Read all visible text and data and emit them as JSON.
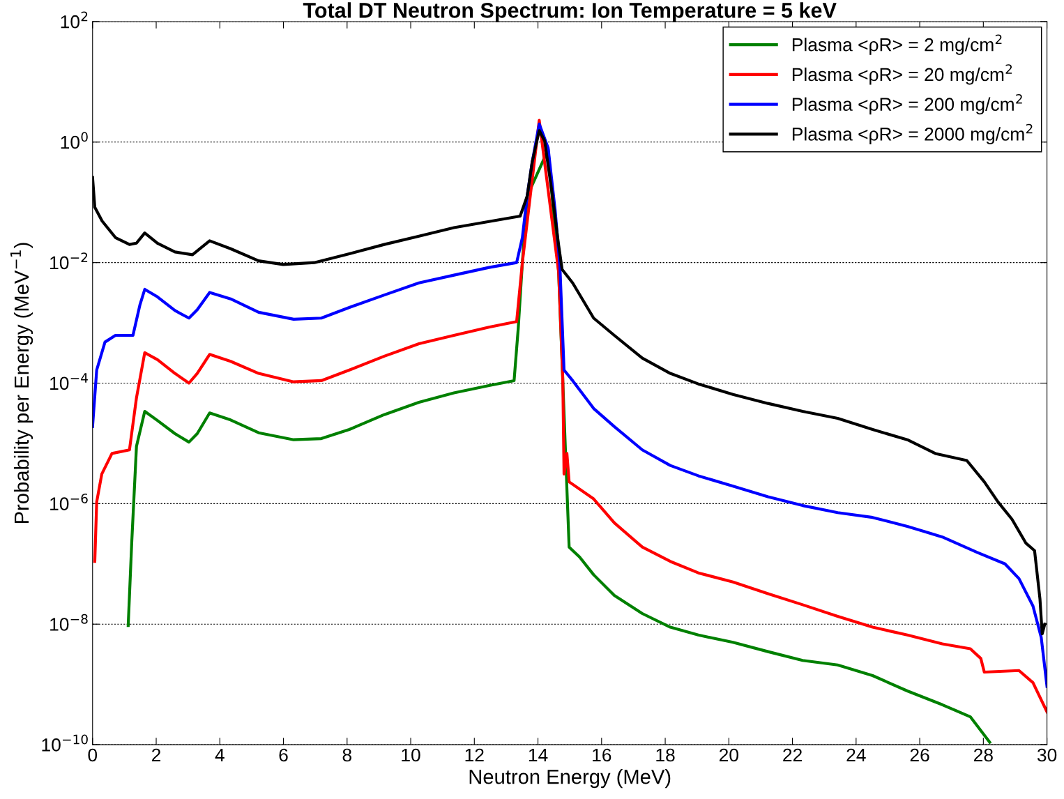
{
  "chart_data": {
    "type": "line",
    "title": "Total DT Neutron Spectrum: Ion Temperature = 5 keV",
    "xlabel": "Neutron Energy (MeV)",
    "ylabel": "Probability per Energy (MeV$^{−1}$)",
    "log": "y",
    "grid": "y",
    "legend": "top right",
    "marker": "none",
    "line_style": "solid",
    "xlim": [
      0,
      30
    ],
    "xticks": [
      0,
      2,
      4,
      6,
      8,
      10,
      12,
      14,
      16,
      18,
      20,
      22,
      24,
      26,
      28,
      30
    ],
    "ylim": [
      1e-10,
      100
    ],
    "yticks": [
      {
        "value": 1e-10,
        "label": "10$^{−10}$"
      },
      {
        "value": 1e-08,
        "label": "10$^{−8}$"
      },
      {
        "value": 1e-06,
        "label": "10$^{−6}$"
      },
      {
        "value": 0.0001,
        "label": "10$^{−4}$"
      },
      {
        "value": 0.01,
        "label": "10$^{−2}$"
      },
      {
        "value": 1,
        "label": "10$^{0}$"
      },
      {
        "value": 100,
        "label": "10$^{2}$"
      }
    ],
    "series": [
      {
        "name": "Plasma <ρR> = 2 mg/cm$^{2}$",
        "color": "#008000",
        "x": [
          1.12,
          1.23,
          1.38,
          1.64,
          2.04,
          2.59,
          3.03,
          3.29,
          3.68,
          4.34,
          5.22,
          6.32,
          7.19,
          8.07,
          9.17,
          10.26,
          11.36,
          12.46,
          13.25,
          13.38,
          13.51,
          13.66,
          14.32,
          14.65,
          14.98,
          15.31,
          15.75,
          16.4,
          17.28,
          18.16,
          19.04,
          20.13,
          21.23,
          22.32,
          23.42,
          24.52,
          25.61,
          26.71,
          27.59,
          28.2
        ],
        "values": [
          9.5e-09,
          2.2e-07,
          8.9e-06,
          3.4e-05,
          2.4e-05,
          1.45e-05,
          1.05e-05,
          1.45e-05,
          3.2e-05,
          2.45e-05,
          1.5e-05,
          1.15e-05,
          1.2e-05,
          1.7e-05,
          3e-05,
          4.8e-05,
          6.9e-05,
          9.1e-05,
          0.00011,
          0.00081,
          0.01,
          0.126,
          0.75,
          0.007,
          1.9e-07,
          1.3e-07,
          6.6e-08,
          3e-08,
          1.5e-08,
          8.9e-09,
          6.6e-09,
          5e-09,
          3.5e-09,
          2.5e-09,
          2.1e-09,
          1.4e-09,
          7.8e-10,
          4.6e-10,
          2.9e-10,
          1.1e-10
        ]
      },
      {
        "name": "Plasma <ρR> = 20 mg/cm$^{2}$",
        "color": "#ff0000",
        "x": [
          0.07,
          0.13,
          0.29,
          0.61,
          1.16,
          1.38,
          1.64,
          2.04,
          2.59,
          3.03,
          3.29,
          3.68,
          4.34,
          5.22,
          6.32,
          7.19,
          8.07,
          9.17,
          10.26,
          11.36,
          12.46,
          13.33,
          13.51,
          14.04,
          14.65,
          14.78,
          14.82,
          14.91,
          14.98,
          15.75,
          16.4,
          17.28,
          18.16,
          19.04,
          20.13,
          21.23,
          22.32,
          23.42,
          24.52,
          25.61,
          26.71,
          27.59,
          27.92,
          28.03,
          29.12,
          29.56,
          30
        ],
        "values": [
          1.1e-07,
          1.07e-06,
          3.1e-06,
          6.8e-06,
          7.8e-06,
          5.7e-05,
          0.00032,
          0.000245,
          0.000145,
          0.0001,
          0.000145,
          0.0003,
          0.00023,
          0.000145,
          0.000105,
          0.00011,
          0.000165,
          0.00028,
          0.00045,
          0.00062,
          0.00085,
          0.00105,
          0.01,
          2.3,
          0.007,
          0.00012,
          3.1e-06,
          6.8e-06,
          2.3e-06,
          1.2e-06,
          4.8e-07,
          1.9e-07,
          1.1e-07,
          7.1e-08,
          5e-08,
          3.2e-08,
          2.1e-08,
          1.35e-08,
          8.9e-09,
          6.6e-09,
          4.7e-09,
          3.9e-09,
          2.7e-09,
          1.6e-09,
          1.7e-09,
          1.07e-09,
          3.5e-10
        ]
      },
      {
        "name": "Plasma <ρR> = 200 mg/cm$^{2}$",
        "color": "#0000ff",
        "x": [
          0,
          0.13,
          0.39,
          0.72,
          1.27,
          1.49,
          1.64,
          2.04,
          2.59,
          3.03,
          3.29,
          3.68,
          4.34,
          5.22,
          6.32,
          7.19,
          8.07,
          9.17,
          10.26,
          11.36,
          12.46,
          13.33,
          13.51,
          13.66,
          13.82,
          14.04,
          14.32,
          14.54,
          14.69,
          14.82,
          15.09,
          15.75,
          16.4,
          17.28,
          18.16,
          19.04,
          20.13,
          21.23,
          22.32,
          23.42,
          24.52,
          25.61,
          26.71,
          27.81,
          28.68,
          29.12,
          29.56,
          29.82,
          30
        ],
        "values": [
          1.9e-05,
          0.000165,
          0.00048,
          0.00062,
          0.00062,
          0.002,
          0.0036,
          0.0027,
          0.0016,
          0.0012,
          0.00165,
          0.0032,
          0.0025,
          0.0015,
          0.00115,
          0.0012,
          0.0018,
          0.0029,
          0.0046,
          0.0062,
          0.0083,
          0.01,
          0.026,
          0.126,
          0.47,
          2.0,
          0.8,
          0.074,
          0.0088,
          0.000165,
          0.00011,
          3.8e-05,
          1.9e-05,
          7.8e-06,
          4.3e-06,
          2.9e-06,
          1.95e-06,
          1.3e-06,
          9.3e-07,
          7.1e-07,
          5.9e-07,
          4.2e-07,
          2.8e-07,
          1.55e-07,
          1e-07,
          5.7e-08,
          2e-08,
          6e-09,
          9.3e-10
        ]
      },
      {
        "name": "Plasma <ρR> = 2000 mg/cm$^{2}$",
        "color": "#000000",
        "x": [
          0,
          0.07,
          0.3,
          0.72,
          1.16,
          1.38,
          1.64,
          2.04,
          2.59,
          3.14,
          3.68,
          4.34,
          5.22,
          5.99,
          6.97,
          8.07,
          9.17,
          10.26,
          11.36,
          12.46,
          13.44,
          13.66,
          13.82,
          14.04,
          14.21,
          14.43,
          14.65,
          14.76,
          15.09,
          15.75,
          16.4,
          17.28,
          18.16,
          19.04,
          20.13,
          21.23,
          22.32,
          23.42,
          24.52,
          25.61,
          26.49,
          27.48,
          28.03,
          28.46,
          28.9,
          29.34,
          29.61,
          29.78,
          29.85,
          29.93
        ],
        "values": [
          0.26,
          0.083,
          0.049,
          0.026,
          0.02,
          0.021,
          0.031,
          0.021,
          0.015,
          0.0135,
          0.023,
          0.017,
          0.0107,
          0.0093,
          0.01,
          0.014,
          0.02,
          0.0275,
          0.038,
          0.048,
          0.059,
          0.126,
          0.47,
          1.55,
          1.05,
          0.16,
          0.0195,
          0.0077,
          0.0046,
          0.0012,
          0.00062,
          0.00026,
          0.000145,
          9.7e-05,
          6.5e-05,
          4.6e-05,
          3.4e-05,
          2.6e-05,
          1.7e-05,
          1.15e-05,
          6.8e-06,
          5.2e-06,
          2.3e-06,
          1.07e-06,
          5.5e-07,
          2.2e-07,
          1.66e-07,
          2.6e-08,
          6.9e-09,
          1e-08
        ]
      }
    ]
  }
}
